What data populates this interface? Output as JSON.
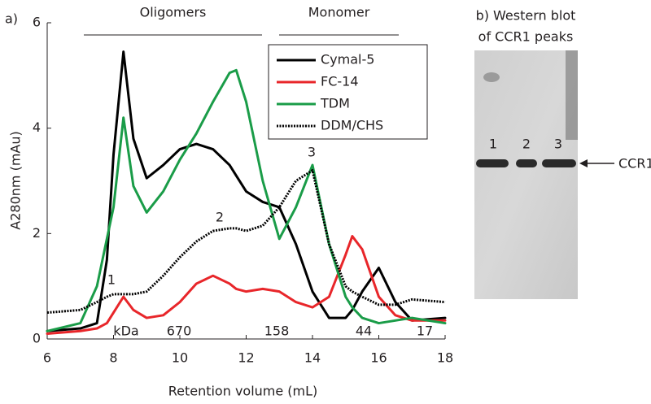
{
  "panel_label": "a)",
  "chart_data": {
    "type": "line",
    "x_label": "Retention volume (mL)",
    "y_label": "A280nm (mAu)",
    "regions": [
      "Oligomers",
      "Monomer"
    ],
    "peak_labels": [
      "1",
      "2",
      "3"
    ],
    "mw_labels": [
      "kDa",
      "670",
      "158",
      "44",
      "17"
    ],
    "x": [
      6,
      7,
      7.5,
      7.8,
      8,
      8.3,
      8.6,
      9,
      9.5,
      10,
      10.5,
      11,
      11.5,
      11.7,
      12,
      12.5,
      13,
      13.5,
      14,
      14.5,
      15,
      15.2,
      15.5,
      16,
      16.5,
      17,
      18
    ],
    "series": [
      {
        "name": "Cymal-5",
        "color": "#000000",
        "dash": "solid",
        "values": [
          0.15,
          0.2,
          0.3,
          1.5,
          3.5,
          5.45,
          3.8,
          3.05,
          3.3,
          3.6,
          3.7,
          3.6,
          3.3,
          3.1,
          2.8,
          2.6,
          2.5,
          1.8,
          0.9,
          0.4,
          0.4,
          0.55,
          0.9,
          1.35,
          0.7,
          0.35,
          0.4
        ]
      },
      {
        "name": "FC-14",
        "color": "#e8262a",
        "dash": "solid",
        "values": [
          0.1,
          0.15,
          0.2,
          0.3,
          0.5,
          0.8,
          0.55,
          0.4,
          0.45,
          0.7,
          1.05,
          1.2,
          1.05,
          0.95,
          0.9,
          0.95,
          0.9,
          0.7,
          0.6,
          0.8,
          1.6,
          1.95,
          1.7,
          0.8,
          0.45,
          0.35,
          0.35
        ]
      },
      {
        "name": "TDM",
        "color": "#1a9c48",
        "dash": "solid",
        "values": [
          0.15,
          0.3,
          1.0,
          1.9,
          2.5,
          4.2,
          2.9,
          2.4,
          2.8,
          3.4,
          3.9,
          4.5,
          5.05,
          5.1,
          4.5,
          3.0,
          1.9,
          2.5,
          3.3,
          1.8,
          0.8,
          0.6,
          0.4,
          0.3,
          0.35,
          0.4,
          0.3
        ]
      },
      {
        "name": "DDM/CHS",
        "color": "#000000",
        "dash": "dotted",
        "values": [
          0.5,
          0.55,
          0.7,
          0.8,
          0.85,
          0.85,
          0.85,
          0.9,
          1.2,
          1.55,
          1.85,
          2.05,
          2.1,
          2.1,
          2.05,
          2.15,
          2.5,
          3.0,
          3.2,
          1.8,
          1.0,
          0.9,
          0.8,
          0.65,
          0.65,
          0.75,
          0.7
        ]
      }
    ],
    "xlim": [
      6,
      18
    ],
    "xticks": [
      6,
      8,
      10,
      12,
      14,
      16,
      18
    ],
    "ylim": [
      0,
      6
    ],
    "yticks": [
      0,
      2,
      4,
      6
    ],
    "legend": "upper right"
  },
  "blot": {
    "title": [
      "b) Western blot",
      "of CCR1 peaks"
    ],
    "lanes": [
      "1",
      "2",
      "3"
    ],
    "band_label": "CCR1"
  }
}
